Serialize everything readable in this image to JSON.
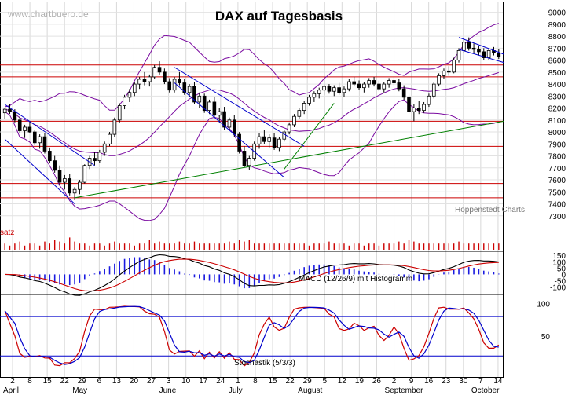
{
  "chart_data": {
    "type": "candlestick",
    "title": "DAX auf Tagesbasis",
    "watermark": "www.chartbuero.de",
    "source": "Hoppenstedt Charts",
    "panels": {
      "price": {
        "ylim": [
          7200,
          9050
        ],
        "yticks": [
          9000,
          8900,
          8800,
          8700,
          8600,
          8500,
          8400,
          8300,
          8200,
          8100,
          8000,
          7900,
          7800,
          7700,
          7600,
          7500,
          7400,
          7300
        ],
        "horizontal_lines": [
          8560,
          8460,
          8090,
          7880,
          7570,
          7450
        ],
        "candles": [
          [
            8160,
            8200,
            8110,
            8190
          ],
          [
            8190,
            8230,
            8150,
            8170
          ],
          [
            8170,
            8190,
            8080,
            8100
          ],
          [
            8100,
            8130,
            7990,
            8010
          ],
          [
            8010,
            8060,
            7950,
            8040
          ],
          [
            8040,
            8090,
            7990,
            8000
          ],
          [
            8000,
            8020,
            7890,
            7910
          ],
          [
            7910,
            7980,
            7860,
            7960
          ],
          [
            7960,
            7990,
            7820,
            7840
          ],
          [
            7840,
            7870,
            7740,
            7760
          ],
          [
            7760,
            7800,
            7660,
            7680
          ],
          [
            7680,
            7720,
            7560,
            7580
          ],
          [
            7580,
            7640,
            7520,
            7610
          ],
          [
            7610,
            7650,
            7470,
            7490
          ],
          [
            7490,
            7540,
            7430,
            7520
          ],
          [
            7520,
            7600,
            7480,
            7580
          ],
          [
            7580,
            7730,
            7570,
            7720
          ],
          [
            7720,
            7800,
            7690,
            7780
          ],
          [
            7780,
            7830,
            7720,
            7760
          ],
          [
            7760,
            7850,
            7740,
            7830
          ],
          [
            7830,
            7920,
            7800,
            7900
          ],
          [
            7900,
            8000,
            7880,
            7980
          ],
          [
            7980,
            8120,
            7960,
            8100
          ],
          [
            8100,
            8240,
            8080,
            8220
          ],
          [
            8220,
            8310,
            8190,
            8290
          ],
          [
            8290,
            8360,
            8250,
            8330
          ],
          [
            8330,
            8420,
            8300,
            8400
          ],
          [
            8400,
            8460,
            8360,
            8440
          ],
          [
            8440,
            8500,
            8390,
            8420
          ],
          [
            8420,
            8480,
            8380,
            8460
          ],
          [
            8460,
            8560,
            8440,
            8540
          ],
          [
            8540,
            8590,
            8480,
            8500
          ],
          [
            8500,
            8530,
            8400,
            8420
          ],
          [
            8420,
            8450,
            8330,
            8350
          ],
          [
            8350,
            8460,
            8330,
            8440
          ],
          [
            8440,
            8500,
            8390,
            8410
          ],
          [
            8410,
            8440,
            8310,
            8330
          ],
          [
            8330,
            8400,
            8290,
            8380
          ],
          [
            8380,
            8420,
            8230,
            8250
          ],
          [
            8250,
            8330,
            8200,
            8300
          ],
          [
            8300,
            8320,
            8160,
            8180
          ],
          [
            8180,
            8270,
            8150,
            8250
          ],
          [
            8250,
            8290,
            8120,
            8140
          ],
          [
            8140,
            8200,
            8080,
            8170
          ],
          [
            8170,
            8210,
            8020,
            8040
          ],
          [
            8040,
            8120,
            8010,
            8100
          ],
          [
            8100,
            8140,
            7960,
            7980
          ],
          [
            7980,
            8000,
            7820,
            7840
          ],
          [
            7840,
            7880,
            7700,
            7720
          ],
          [
            7720,
            7800,
            7680,
            7780
          ],
          [
            7780,
            7920,
            7760,
            7900
          ],
          [
            7900,
            7990,
            7860,
            7960
          ],
          [
            7960,
            8020,
            7900,
            7920
          ],
          [
            7920,
            7980,
            7870,
            7950
          ],
          [
            7950,
            7990,
            7850,
            7870
          ],
          [
            7870,
            7960,
            7840,
            7940
          ],
          [
            7940,
            8020,
            7920,
            8000
          ],
          [
            8000,
            8080,
            7980,
            8060
          ],
          [
            8060,
            8150,
            8040,
            8130
          ],
          [
            8130,
            8200,
            8110,
            8180
          ],
          [
            8180,
            8260,
            8150,
            8240
          ],
          [
            8240,
            8310,
            8220,
            8290
          ],
          [
            8290,
            8340,
            8250,
            8320
          ],
          [
            8320,
            8370,
            8280,
            8350
          ],
          [
            8350,
            8400,
            8310,
            8380
          ],
          [
            8380,
            8400,
            8320,
            8340
          ],
          [
            8340,
            8390,
            8300,
            8370
          ],
          [
            8370,
            8410,
            8310,
            8330
          ],
          [
            8330,
            8380,
            8290,
            8360
          ],
          [
            8360,
            8440,
            8340,
            8420
          ],
          [
            8420,
            8460,
            8380,
            8400
          ],
          [
            8400,
            8430,
            8350,
            8370
          ],
          [
            8370,
            8420,
            8330,
            8400
          ],
          [
            8400,
            8450,
            8370,
            8430
          ],
          [
            8430,
            8460,
            8380,
            8400
          ],
          [
            8400,
            8430,
            8340,
            8360
          ],
          [
            8360,
            8420,
            8330,
            8400
          ],
          [
            8400,
            8450,
            8370,
            8430
          ],
          [
            8430,
            8460,
            8380,
            8410
          ],
          [
            8410,
            8440,
            8340,
            8360
          ],
          [
            8360,
            8390,
            8270,
            8290
          ],
          [
            8290,
            8320,
            8150,
            8170
          ],
          [
            8170,
            8230,
            8090,
            8200
          ],
          [
            8200,
            8260,
            8150,
            8180
          ],
          [
            8180,
            8250,
            8160,
            8230
          ],
          [
            8230,
            8320,
            8210,
            8300
          ],
          [
            8300,
            8420,
            8280,
            8400
          ],
          [
            8400,
            8490,
            8380,
            8470
          ],
          [
            8470,
            8530,
            8440,
            8510
          ],
          [
            8510,
            8550,
            8470,
            8500
          ],
          [
            8500,
            8620,
            8490,
            8600
          ],
          [
            8600,
            8700,
            8580,
            8680
          ],
          [
            8680,
            8780,
            8660,
            8750
          ],
          [
            8750,
            8790,
            8680,
            8700
          ],
          [
            8700,
            8740,
            8660,
            8690
          ],
          [
            8690,
            8720,
            8640,
            8670
          ],
          [
            8670,
            8700,
            8600,
            8620
          ],
          [
            8620,
            8690,
            8600,
            8680
          ],
          [
            8680,
            8710,
            8640,
            8660
          ],
          [
            8660,
            8690,
            8610,
            8630
          ]
        ],
        "channel_lines": [
          {
            "from": [
              0,
              8230
            ],
            "to": [
              18,
              7720
            ],
            "color": "#0000cc"
          },
          {
            "from": [
              0,
              7940
            ],
            "to": [
              14,
              7400
            ],
            "color": "#0000cc"
          },
          {
            "from": [
              34,
              8540
            ],
            "to": [
              60,
              7880
            ],
            "color": "#0000cc"
          },
          {
            "from": [
              34,
              8410
            ],
            "to": [
              56,
              7620
            ],
            "color": "#0000cc"
          },
          {
            "from": [
              14,
              7450
            ],
            "to": [
              100,
              8090
            ],
            "color": "#008000"
          },
          {
            "from": [
              56,
              7690
            ],
            "to": [
              66,
              8240
            ],
            "color": "#008000"
          },
          {
            "from": [
              91,
              8790
            ],
            "to": [
              100,
              8650
            ],
            "color": "#0000cc"
          },
          {
            "from": [
              91,
              8690
            ],
            "to": [
              100,
              8580
            ],
            "color": "#0000cc"
          }
        ]
      },
      "volume": {
        "label": "satz",
        "values": [
          3,
          2,
          3,
          4,
          2,
          3,
          3,
          2,
          4,
          3,
          5,
          4,
          3,
          6,
          4,
          3,
          3,
          2,
          3,
          3,
          2,
          3,
          4,
          3,
          3,
          3,
          2,
          3,
          3,
          5,
          3,
          4,
          3,
          3,
          3,
          4,
          3,
          3,
          4,
          3,
          3,
          3,
          3,
          3,
          3,
          4,
          3,
          5,
          4,
          5,
          3,
          3,
          3,
          3,
          3,
          3,
          3,
          3,
          3,
          3,
          3,
          2,
          3,
          3,
          3,
          4,
          3,
          3,
          3,
          2,
          3,
          3,
          2,
          3,
          3,
          2,
          3,
          3,
          3,
          4,
          3,
          5,
          4,
          3,
          3,
          3,
          3,
          3,
          3,
          3,
          3,
          4,
          3,
          3,
          3,
          3,
          3,
          3,
          3,
          3
        ]
      },
      "macd": {
        "label": "MACD (12/26/9) mit Histogramm",
        "yticks": [
          150,
          100,
          50,
          0,
          -50,
          -100
        ],
        "ylim": [
          -140,
          170
        ]
      },
      "stochastik": {
        "label": "Stochastik (5/3/3)",
        "yticks": [
          100,
          50
        ],
        "ylim": [
          0,
          110
        ]
      }
    },
    "x_ticks": [
      "2",
      "8",
      "15",
      "22",
      "29",
      "6",
      "13",
      "20",
      "27",
      "3",
      "10",
      "17",
      "24",
      "1",
      "8",
      "15",
      "22",
      "29",
      "5",
      "12",
      "19",
      "26",
      "2",
      "9",
      "16",
      "23",
      "30",
      "7",
      "14"
    ],
    "month_labels": [
      "April",
      "May",
      "June",
      "July",
      "August",
      "September",
      "October"
    ]
  }
}
